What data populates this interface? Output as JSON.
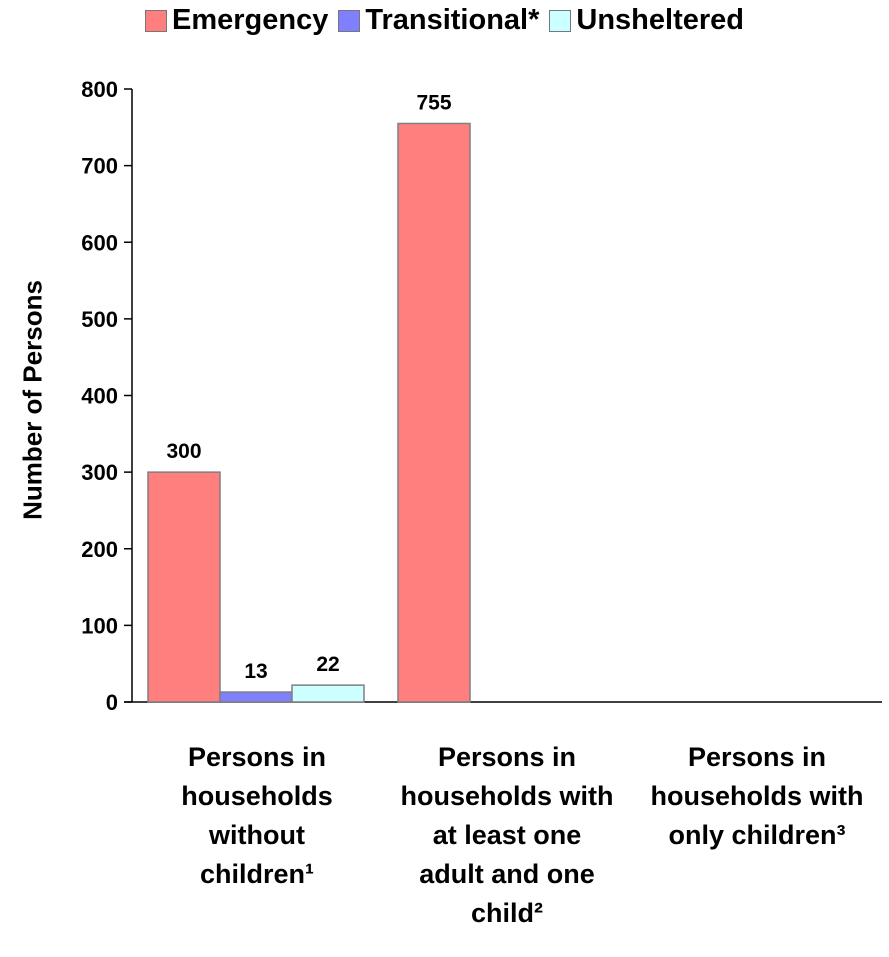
{
  "chart_data": {
    "type": "bar",
    "title": "",
    "xlabel": "",
    "ylabel": "Number of Persons",
    "ylim": [
      0,
      800
    ],
    "yticks": [
      0,
      100,
      200,
      300,
      400,
      500,
      600,
      700,
      800
    ],
    "grid": false,
    "legend_position": "top",
    "categories": [
      "Persons in households without children¹",
      "Persons in households with at least one adult and one child²",
      "Persons in households with only children³"
    ],
    "category_display": [
      "Persons in\nhouseholds\nwithout\nchildren¹",
      "Persons in\nhouseholds with\nat least one\nadult and one\nchild²",
      "Persons in\nhouseholds with\nonly children³"
    ],
    "series": [
      {
        "name": "Emergency",
        "color": "#ff7f7f",
        "values": [
          300,
          755,
          null
        ]
      },
      {
        "name": "Transitional*",
        "color": "#8080ff",
        "values": [
          13,
          null,
          null
        ]
      },
      {
        "name": "Unsheltered",
        "color": "#ccffff",
        "values": [
          22,
          null,
          null
        ]
      }
    ]
  }
}
